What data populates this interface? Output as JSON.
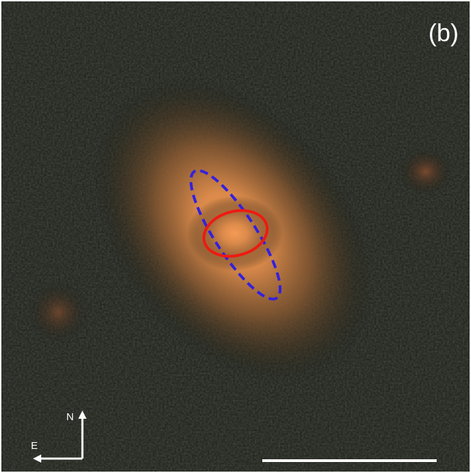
{
  "panel_label": "(b)",
  "compass": {
    "north": "N",
    "east": "E"
  }
}
